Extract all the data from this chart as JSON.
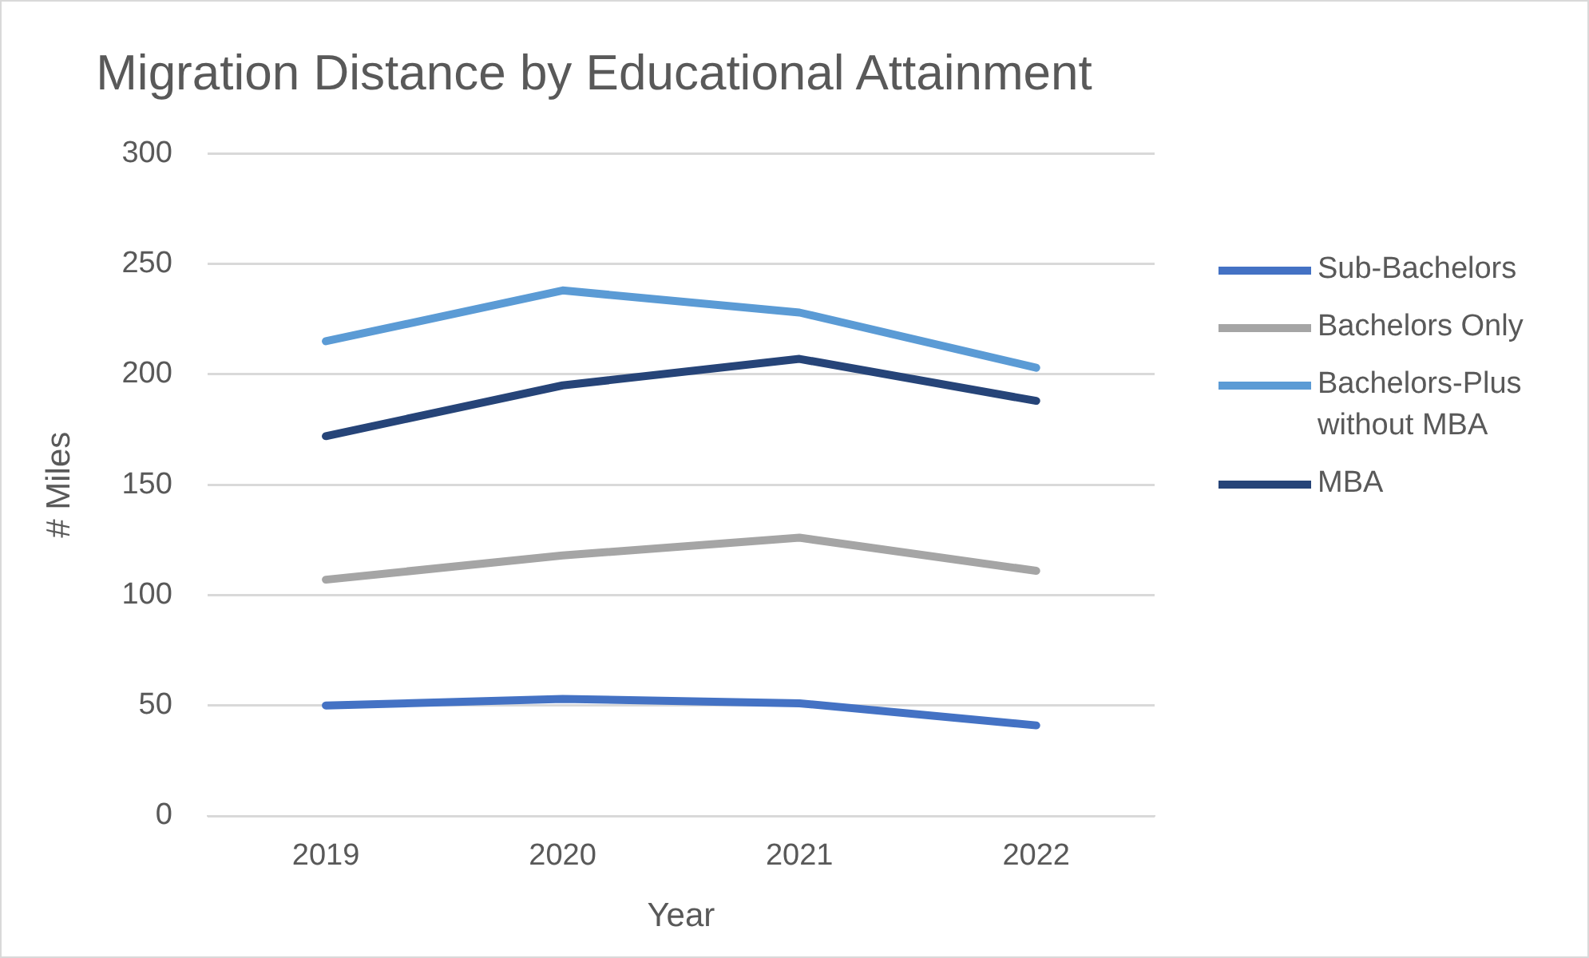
{
  "chart_data": {
    "type": "line",
    "title": "Migration Distance by Educational Attainment",
    "xlabel": "Year",
    "ylabel": "# Miles",
    "categories": [
      "2019",
      "2020",
      "2021",
      "2022"
    ],
    "series": [
      {
        "name": "Sub-Bachelors",
        "color": "#4472c4",
        "values": [
          50,
          53,
          51,
          41
        ]
      },
      {
        "name": "Bachelors Only",
        "color": "#a5a5a5",
        "values": [
          107,
          118,
          126,
          111
        ]
      },
      {
        "name": "Bachelors-Plus without MBA",
        "color": "#5b9bd5",
        "values": [
          215,
          238,
          228,
          203
        ]
      },
      {
        "name": "MBA",
        "color": "#264478",
        "values": [
          172,
          195,
          207,
          188
        ]
      }
    ],
    "ylim": [
      0,
      300
    ],
    "yticks": [
      0,
      50,
      100,
      150,
      200,
      250,
      300
    ],
    "grid": "y",
    "legend": "right",
    "marker": "none",
    "line_style": "solid"
  }
}
